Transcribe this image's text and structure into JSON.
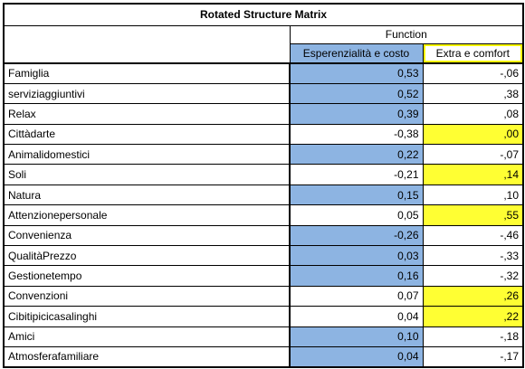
{
  "title": "Rotated Structure Matrix",
  "function_header": "Function",
  "columns": [
    "Esperenzialità e costo",
    "Extra e comfort"
  ],
  "colors": {
    "blue_highlight": "#8db4e2",
    "yellow_highlight": "#ffff33"
  },
  "rows": [
    {
      "label": "Famiglia",
      "v1": "0,53",
      "v2": "-,06",
      "v1_highlight": true,
      "v2_highlight": false
    },
    {
      "label": "serviziaggiuntivi",
      "v1": "0,52",
      "v2": ",38",
      "v1_highlight": true,
      "v2_highlight": false
    },
    {
      "label": "Relax",
      "v1": "0,39",
      "v2": ",08",
      "v1_highlight": true,
      "v2_highlight": false
    },
    {
      "label": "Cittàdarte",
      "v1": "-0,38",
      "v2": ",00",
      "v1_highlight": false,
      "v2_highlight": true
    },
    {
      "label": "Animalidomestici",
      "v1": "0,22",
      "v2": "-,07",
      "v1_highlight": true,
      "v2_highlight": false
    },
    {
      "label": "Soli",
      "v1": "-0,21",
      "v2": ",14",
      "v1_highlight": false,
      "v2_highlight": true
    },
    {
      "label": "Natura",
      "v1": "0,15",
      "v2": ",10",
      "v1_highlight": true,
      "v2_highlight": false
    },
    {
      "label": "Attenzionepersonale",
      "v1": "0,05",
      "v2": ",55",
      "v1_highlight": false,
      "v2_highlight": true
    },
    {
      "label": "Convenienza",
      "v1": "-0,26",
      "v2": "-,46",
      "v1_highlight": true,
      "v2_highlight": false
    },
    {
      "label": "QualitàPrezzo",
      "v1": "0,03",
      "v2": "-,33",
      "v1_highlight": true,
      "v2_highlight": false
    },
    {
      "label": "Gestionetempo",
      "v1": "0,16",
      "v2": "-,32",
      "v1_highlight": true,
      "v2_highlight": false
    },
    {
      "label": "Convenzioni",
      "v1": "0,07",
      "v2": ",26",
      "v1_highlight": false,
      "v2_highlight": true
    },
    {
      "label": "Cibitipicicasalinghi",
      "v1": "0,04",
      "v2": ",22",
      "v1_highlight": false,
      "v2_highlight": true
    },
    {
      "label": "Amici",
      "v1": "0,10",
      "v2": "-,18",
      "v1_highlight": true,
      "v2_highlight": false
    },
    {
      "label": "Atmosferafamiliare",
      "v1": "0,04",
      "v2": "-,17",
      "v1_highlight": true,
      "v2_highlight": false
    }
  ]
}
